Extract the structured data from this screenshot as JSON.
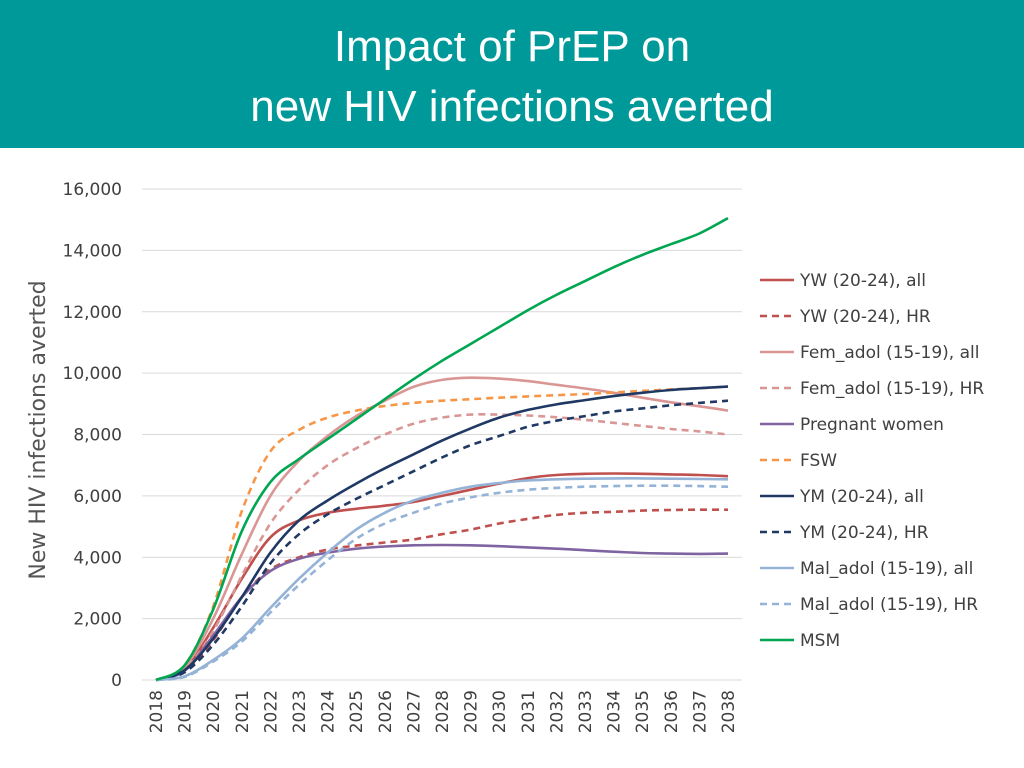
{
  "header": {
    "title_line1": "Impact of PrEP on",
    "title_line2": "new HIV infections averted",
    "background": "#009999"
  },
  "chart_data": {
    "type": "line",
    "title": "Impact of PrEP on new HIV infections averted",
    "xlabel": "",
    "ylabel": "New HIV infections averted",
    "ylim": [
      0,
      16000
    ],
    "yticks": [
      0,
      2000,
      4000,
      6000,
      8000,
      10000,
      12000,
      14000,
      16000
    ],
    "ytick_labels": [
      "0",
      "2,000",
      "4,000",
      "6,000",
      "8,000",
      "10,000",
      "12,000",
      "14,000",
      "16,000"
    ],
    "grid": true,
    "legend_position": "right",
    "x": [
      2018,
      2019,
      2020,
      2021,
      2022,
      2023,
      2024,
      2025,
      2026,
      2027,
      2028,
      2029,
      2030,
      2031,
      2032,
      2033,
      2034,
      2035,
      2036,
      2037,
      2038
    ],
    "x_labels": [
      "2018",
      "2019",
      "2020",
      "2021",
      "2022",
      "2023",
      "2024",
      "2025",
      "2026",
      "2027",
      "2028",
      "2029",
      "2030",
      "2031",
      "2032",
      "2033",
      "2034",
      "2035",
      "2036",
      "2037",
      "2038"
    ],
    "series": [
      {
        "name": "YW (20-24), all",
        "color": "#C0504D",
        "dashed": false,
        "values": [
          0,
          350,
          1700,
          3300,
          4650,
          5200,
          5450,
          5580,
          5680,
          5800,
          6000,
          6200,
          6400,
          6580,
          6680,
          6720,
          6730,
          6720,
          6700,
          6680,
          6640
        ]
      },
      {
        "name": "YW (20-24), HR",
        "color": "#C0504D",
        "dashed": true,
        "values": [
          0,
          300,
          1300,
          2700,
          3600,
          4000,
          4250,
          4380,
          4480,
          4580,
          4750,
          4900,
          5100,
          5250,
          5380,
          5450,
          5480,
          5520,
          5540,
          5550,
          5550
        ]
      },
      {
        "name": "Fem_adol (15-19), all",
        "color": "#D99694",
        "dashed": false,
        "values": [
          0,
          420,
          2000,
          4100,
          6000,
          7150,
          7950,
          8600,
          9100,
          9550,
          9780,
          9850,
          9820,
          9740,
          9620,
          9500,
          9360,
          9200,
          9050,
          8920,
          8780
        ]
      },
      {
        "name": "Fem_adol (15-19), HR",
        "color": "#D99694",
        "dashed": true,
        "values": [
          0,
          350,
          1600,
          3400,
          5100,
          6200,
          7000,
          7550,
          8000,
          8350,
          8550,
          8650,
          8650,
          8620,
          8560,
          8480,
          8380,
          8280,
          8180,
          8100,
          8000
        ]
      },
      {
        "name": "Pregnant women",
        "color": "#8064A2",
        "dashed": false,
        "values": [
          0,
          300,
          1450,
          2700,
          3550,
          3950,
          4150,
          4280,
          4350,
          4390,
          4400,
          4390,
          4360,
          4320,
          4280,
          4230,
          4180,
          4140,
          4120,
          4110,
          4120
        ]
      },
      {
        "name": "FSW",
        "color": "#F79646",
        "dashed": true,
        "values": [
          0,
          480,
          2400,
          5500,
          7450,
          8150,
          8550,
          8780,
          8930,
          9030,
          9100,
          9150,
          9200,
          9240,
          9280,
          9320,
          9370,
          9420,
          9470,
          9510,
          9560
        ]
      },
      {
        "name": "YM (20-24), all",
        "color": "#1F3864",
        "dashed": false,
        "values": [
          0,
          320,
          1350,
          2700,
          4150,
          5200,
          5850,
          6400,
          6900,
          7350,
          7800,
          8200,
          8550,
          8800,
          8980,
          9120,
          9250,
          9360,
          9450,
          9510,
          9560
        ]
      },
      {
        "name": "YM (20-24), HR",
        "color": "#1F3864",
        "dashed": true,
        "values": [
          0,
          250,
          1150,
          2400,
          3800,
          4750,
          5400,
          5900,
          6350,
          6800,
          7250,
          7650,
          7950,
          8250,
          8450,
          8600,
          8750,
          8850,
          8950,
          9030,
          9100
        ]
      },
      {
        "name": "Mal_adol (15-19), all",
        "color": "#95B3D7",
        "dashed": false,
        "values": [
          0,
          120,
          650,
          1350,
          2350,
          3300,
          4150,
          4900,
          5450,
          5850,
          6100,
          6300,
          6420,
          6500,
          6540,
          6560,
          6570,
          6570,
          6560,
          6550,
          6540
        ]
      },
      {
        "name": "Mal_adol (15-19), HR",
        "color": "#95B3D7",
        "dashed": true,
        "values": [
          0,
          100,
          600,
          1250,
          2200,
          3100,
          3900,
          4600,
          5100,
          5450,
          5750,
          5950,
          6100,
          6200,
          6260,
          6300,
          6320,
          6330,
          6330,
          6320,
          6300
        ]
      },
      {
        "name": "MSM",
        "color": "#00A651",
        "dashed": false,
        "values": [
          0,
          480,
          2300,
          4850,
          6450,
          7200,
          7850,
          8500,
          9150,
          9800,
          10400,
          10950,
          11500,
          12050,
          12550,
          13000,
          13450,
          13850,
          14200,
          14550,
          15050
        ]
      }
    ]
  }
}
